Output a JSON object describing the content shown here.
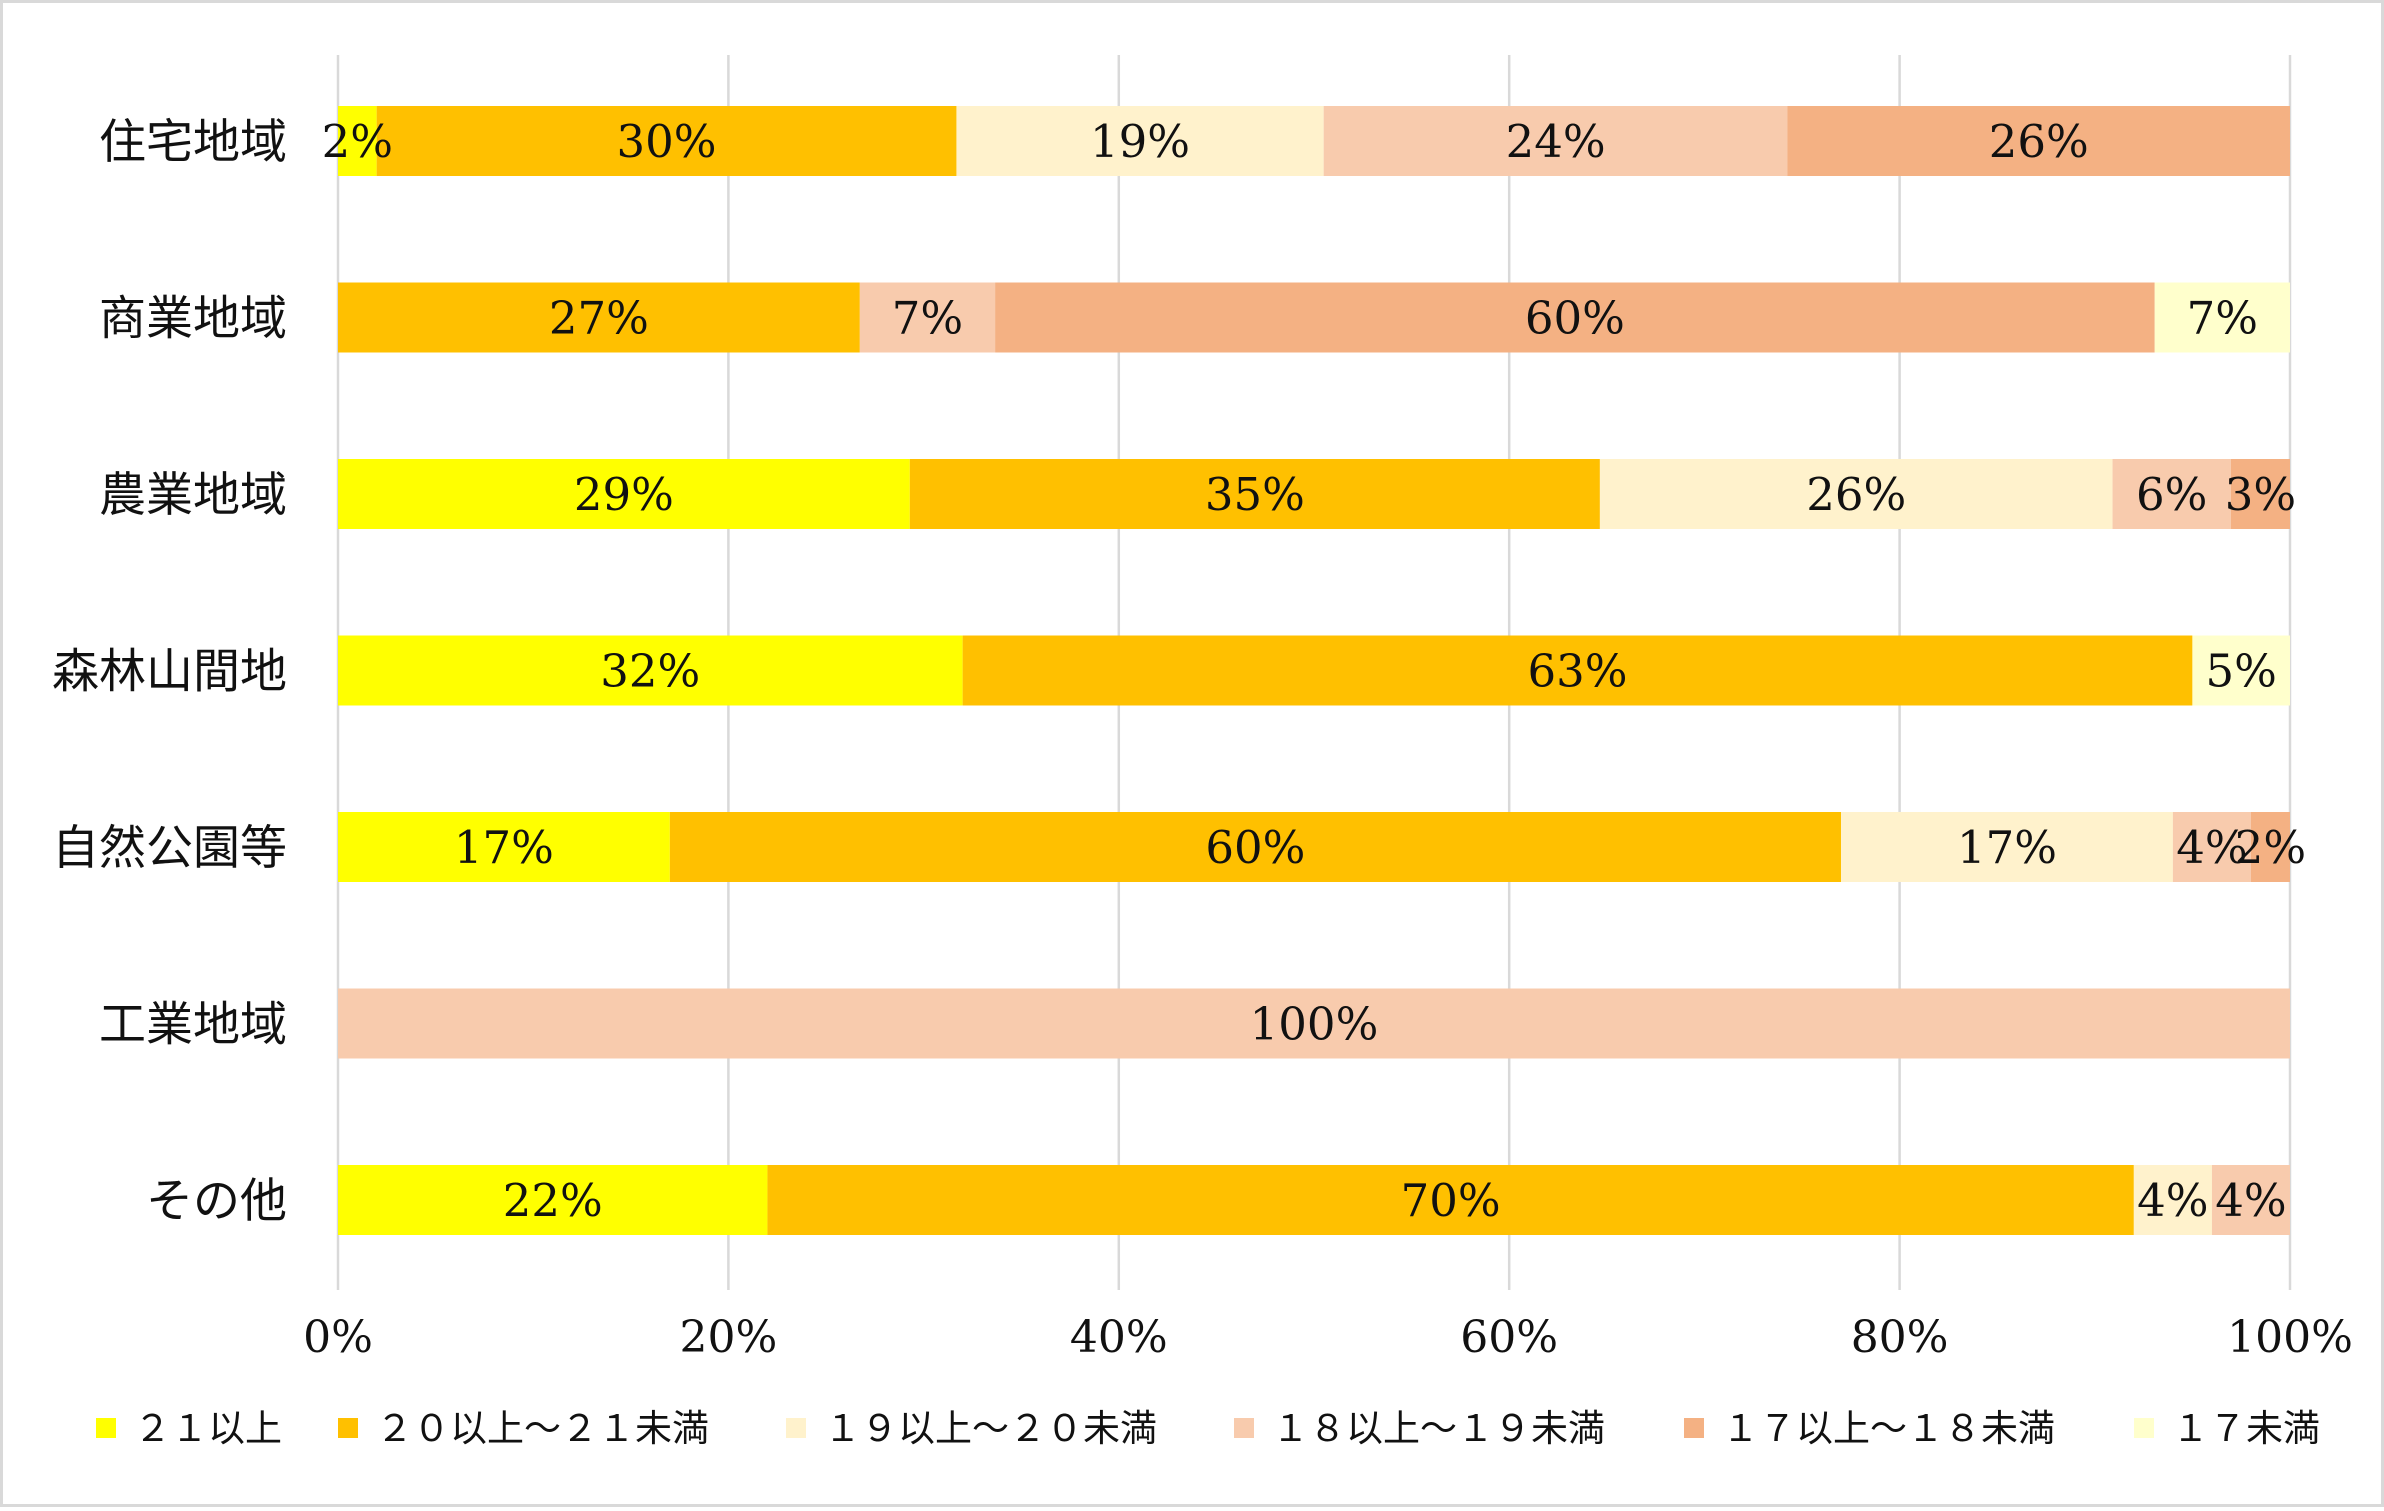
{
  "chart_data": {
    "type": "bar",
    "orientation": "horizontal",
    "stacked": "percent",
    "categories": [
      "住宅地域",
      "商業地域",
      "農業地域",
      "森林山間地",
      "自然公園等",
      "工業地域",
      "その他"
    ],
    "series": [
      {
        "name": "２１以上",
        "color": "#ffff00",
        "values": [
          2,
          0,
          29,
          32,
          17,
          0,
          22
        ]
      },
      {
        "name": "２０以上～２１未満",
        "color": "#ffc000",
        "values": [
          30,
          27,
          35,
          63,
          60,
          0,
          70
        ]
      },
      {
        "name": "１９以上～２０未満",
        "color": "#fff2cc",
        "values": [
          19,
          0,
          26,
          0,
          17,
          0,
          4
        ]
      },
      {
        "name": "１８以上～１９未満",
        "color": "#f8cbad",
        "values": [
          24,
          7,
          6,
          0,
          4,
          100,
          4
        ]
      },
      {
        "name": "１７以上～１８未満",
        "color": "#f4b183",
        "values": [
          26,
          60,
          3,
          0,
          2,
          0,
          0
        ]
      },
      {
        "name": "１７未満",
        "color": "#ffffcc",
        "values": [
          0,
          7,
          0,
          5,
          0,
          0,
          0
        ]
      }
    ],
    "data_labels": [
      [
        "2%",
        "30%",
        "19%",
        "24%",
        "26%",
        ""
      ],
      [
        "",
        "27%",
        "",
        "7%",
        "60%",
        "7%"
      ],
      [
        "29%",
        "35%",
        "26%",
        "6%",
        "3%",
        ""
      ],
      [
        "32%",
        "63%",
        "",
        "",
        "",
        "5%"
      ],
      [
        "17%",
        "60%",
        "17%",
        "4%",
        "2%",
        ""
      ],
      [
        "",
        "",
        "",
        "100%",
        "",
        ""
      ],
      [
        "22%",
        "70%",
        "4%",
        "4%",
        "",
        ""
      ]
    ],
    "x_ticks": [
      "0%",
      "20%",
      "40%",
      "60%",
      "80%",
      "100%"
    ],
    "xlim": [
      0,
      100
    ],
    "grid": true,
    "legend_position": "bottom"
  }
}
